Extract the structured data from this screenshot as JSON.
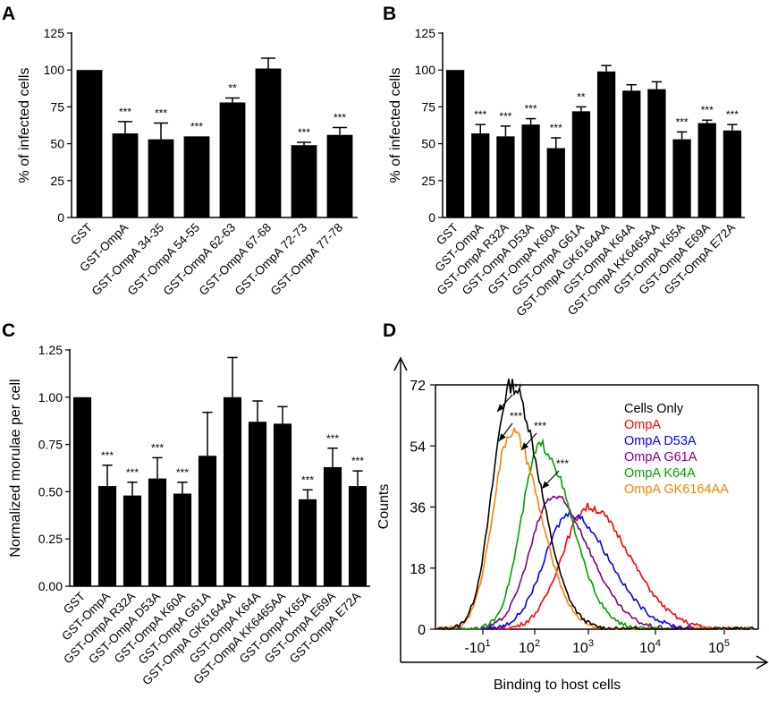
{
  "chart_data": [
    {
      "panel": "A",
      "type": "bar",
      "ylabel": "% of infected cells",
      "ylim": [
        0,
        125
      ],
      "yticks": [
        "0",
        "25",
        "50",
        "75",
        "100",
        "125"
      ],
      "categories": [
        "GST",
        "GST-OmpA",
        "GST-OmpA 34-35",
        "GST-OmpA 54-55",
        "GST-OmpA 62-63",
        "GST-OmpA 67-68",
        "GST-OmpA 72-73",
        "GST-OmpA 77-78"
      ],
      "values": [
        100,
        57,
        53,
        55,
        78,
        101,
        49,
        56
      ],
      "errors": [
        0,
        8,
        11,
        0,
        3,
        7,
        2,
        5
      ],
      "significance": [
        "",
        "***",
        "***",
        "***",
        "**",
        "",
        "***",
        "***"
      ]
    },
    {
      "panel": "B",
      "type": "bar",
      "ylabel": "% of infected cells",
      "ylim": [
        0,
        125
      ],
      "yticks": [
        "0",
        "25",
        "50",
        "75",
        "100",
        "125"
      ],
      "categories": [
        "GST",
        "GST-OmpA",
        "GST-OmpA R32A",
        "GST-OmpA D53A",
        "GST-OmpA K60A",
        "GST-OmpA G61A",
        "GST-OmpA GK6164AA",
        "GST-OmpA K64A",
        "GST-OmpA KK6465AA",
        "GST-OmpA K65A",
        "GST-OmpA E69A",
        "GST-OmpA E72A"
      ],
      "values": [
        100,
        57,
        55,
        63,
        47,
        72,
        99,
        86,
        87,
        53,
        64,
        59
      ],
      "errors": [
        0,
        6,
        7,
        4,
        7,
        3,
        4,
        4,
        5,
        5,
        2,
        4
      ],
      "significance": [
        "",
        "***",
        "***",
        "***",
        "***",
        "**",
        "",
        "",
        "",
        "***",
        "***",
        "***"
      ]
    },
    {
      "panel": "C",
      "type": "bar",
      "ylabel": "Normalized morulae per cell",
      "ylim": [
        0,
        1.25
      ],
      "yticks": [
        "0.00",
        "0.25",
        "0.50",
        "0.75",
        "1.00",
        "1.25"
      ],
      "categories": [
        "GST",
        "GST-OmpA",
        "GST-OmpA R32A",
        "GST-OmpA D53A",
        "GST-OmpA K60A",
        "GST-OmpA G61A",
        "GST-OmpA GK6164AA",
        "GST-OmpA K64A",
        "GST-OmpA KK6465AA",
        "GST-OmpA K65A",
        "GST-OmpA E69A",
        "GST-OmpA E72A"
      ],
      "values": [
        1.0,
        0.53,
        0.48,
        0.57,
        0.49,
        0.69,
        1.0,
        0.87,
        0.86,
        0.46,
        0.63,
        0.53
      ],
      "errors": [
        0,
        0.11,
        0.07,
        0.11,
        0.06,
        0.23,
        0.21,
        0.11,
        0.09,
        0.05,
        0.1,
        0.08
      ],
      "significance": [
        "",
        "***",
        "***",
        "***",
        "***",
        "",
        "",
        "",
        "",
        "***",
        "***",
        "***"
      ]
    },
    {
      "panel": "D",
      "type": "line",
      "xlabel": "Binding to host cells",
      "ylabel": "Counts",
      "ylim": [
        0,
        72
      ],
      "yticks": [
        "0",
        "18",
        "36",
        "54",
        "72"
      ],
      "xticks": [
        {
          "value": -10,
          "base": "-10",
          "exp": "1"
        },
        {
          "value": 100,
          "base": "10",
          "exp": "2"
        },
        {
          "value": 1000,
          "base": "10",
          "exp": "3"
        },
        {
          "value": 10000,
          "base": "10",
          "exp": "4"
        },
        {
          "value": 100000,
          "base": "10",
          "exp": "5"
        }
      ],
      "annotation": "***",
      "series": [
        {
          "name": "Cells Only",
          "color": "#000000",
          "peak_x": 50,
          "peak_count": 72
        },
        {
          "name": "OmpA",
          "color": "#ff0000",
          "peak_x": 1000,
          "peak_count": 36
        },
        {
          "name": "OmpA  D53A",
          "color": "#0000ff",
          "peak_x": 450,
          "peak_count": 34
        },
        {
          "name": "OmpA  G61A",
          "color": "#800080",
          "peak_x": 220,
          "peak_count": 39
        },
        {
          "name": "OmpA  K64A",
          "color": "#00a000",
          "peak_x": 130,
          "peak_count": 54
        },
        {
          "name": "OmpA  GK6164AA",
          "color": "#ff7f00",
          "peak_x": 50,
          "peak_count": 58
        }
      ]
    }
  ],
  "panel_labels": [
    "A",
    "B",
    "C",
    "D"
  ]
}
